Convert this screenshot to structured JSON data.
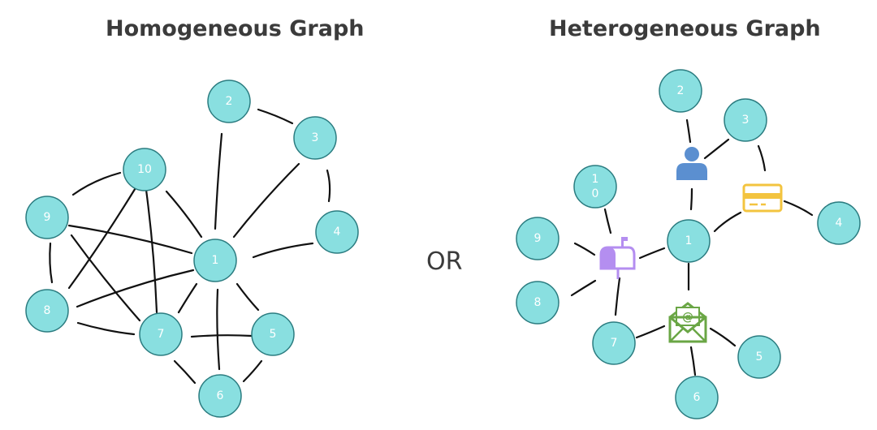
{
  "titles": {
    "left": "Homogeneous Graph",
    "right": "Heterogeneous Graph",
    "or": "OR"
  },
  "homogeneous": {
    "nodes": [
      "1",
      "2",
      "3",
      "4",
      "5",
      "6",
      "7",
      "8",
      "9",
      "10"
    ]
  },
  "heterogeneous": {
    "nodes": [
      "1",
      "2",
      "3",
      "4",
      "5",
      "6",
      "7",
      "8",
      "9",
      "1\n0"
    ],
    "icons": [
      "person-icon",
      "credit-card-icon",
      "mailbox-icon",
      "email-icon"
    ],
    "icon_colors": {
      "person": "#5b8fd0",
      "card": "#f3c43f",
      "mailbox": "#b48ef0",
      "email": "#6aa645"
    }
  },
  "node_color": "#89dfe0"
}
